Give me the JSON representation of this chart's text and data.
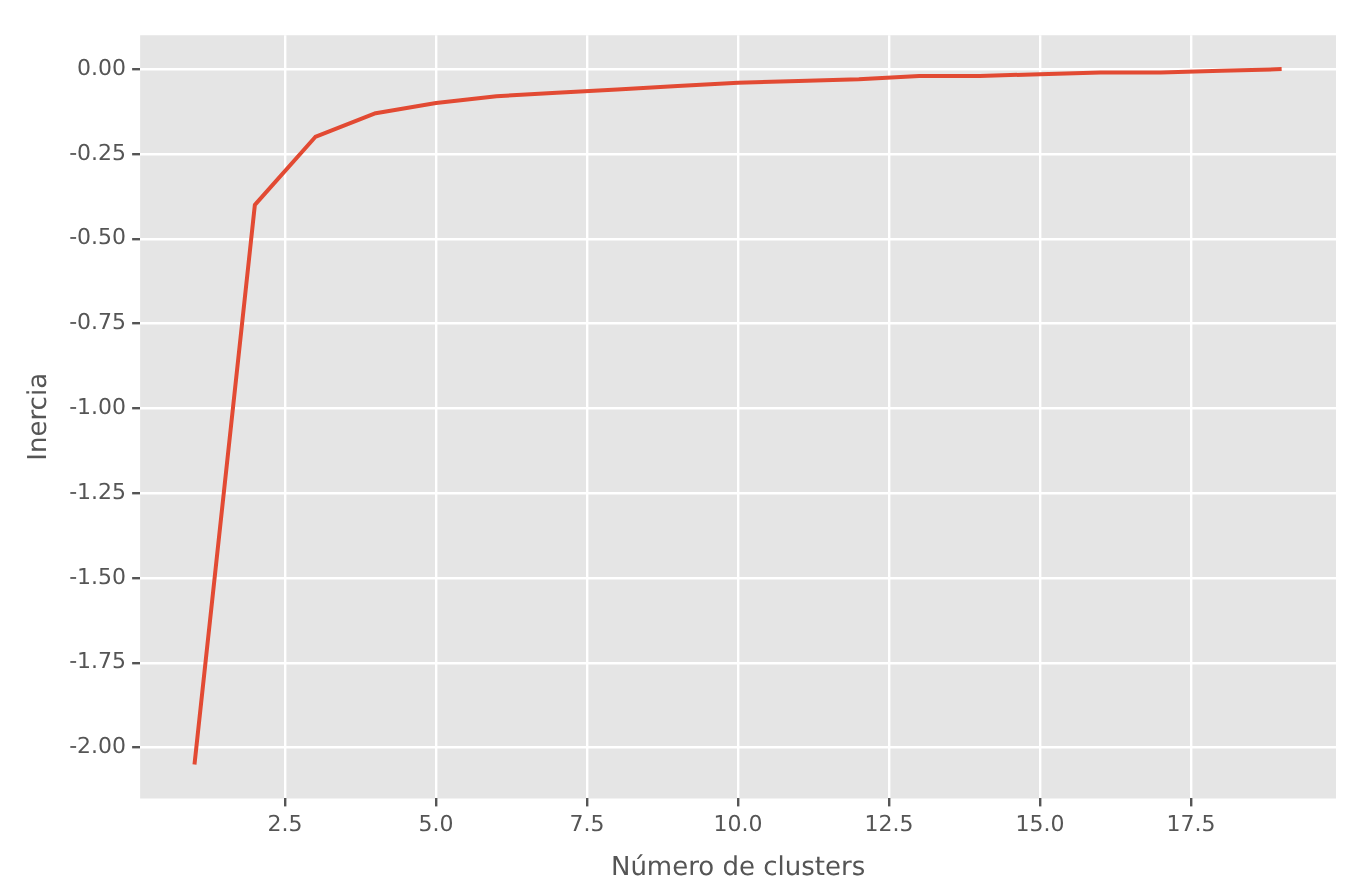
{
  "chart_data": {
    "type": "line",
    "xlabel": "Número de clusters",
    "ylabel": "Inercia",
    "x": [
      1,
      2,
      3,
      4,
      5,
      6,
      7,
      8,
      9,
      10,
      11,
      12,
      13,
      14,
      15,
      16,
      17,
      18,
      19
    ],
    "series": [
      {
        "color": "#e24a33",
        "values": [
          -2.05,
          -0.4,
          -0.2,
          -0.13,
          -0.1,
          -0.08,
          -0.07,
          -0.06,
          -0.05,
          -0.04,
          -0.035,
          -0.03,
          -0.02,
          -0.02,
          -0.015,
          -0.01,
          -0.01,
          -0.005,
          0.0
        ]
      }
    ],
    "xlim": [
      0.1,
      19.9
    ],
    "ylim": [
      -2.15,
      0.1
    ],
    "xticks": [
      {
        "value": 2.5,
        "label": "2.5"
      },
      {
        "value": 5,
        "label": "5.0"
      },
      {
        "value": 7.5,
        "label": "7.5"
      },
      {
        "value": 10,
        "label": "10.0"
      },
      {
        "value": 12.5,
        "label": "12.5"
      },
      {
        "value": 15,
        "label": "15.0"
      },
      {
        "value": 17.5,
        "label": "17.5"
      }
    ],
    "yticks": [
      {
        "value": -2,
        "label": "-2.00"
      },
      {
        "value": -1.75,
        "label": "-1.75"
      },
      {
        "value": -1.5,
        "label": "-1.50"
      },
      {
        "value": -1.25,
        "label": "-1.25"
      },
      {
        "value": -1,
        "label": "-1.00"
      },
      {
        "value": -0.75,
        "label": "-0.75"
      },
      {
        "value": -0.5,
        "label": "-0.50"
      },
      {
        "value": -0.25,
        "label": "-0.25"
      },
      {
        "value": 0,
        "label": "0.00"
      }
    ],
    "grid": true,
    "legend": false,
    "marker": "none",
    "line_style": "solid"
  }
}
